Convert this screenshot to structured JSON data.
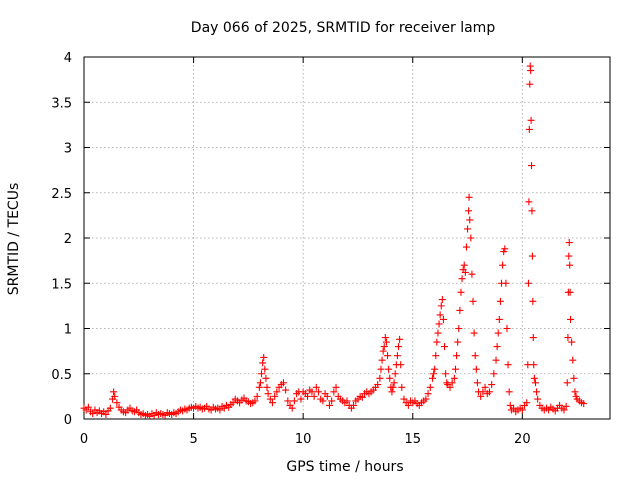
{
  "chart_data": {
    "type": "scatter",
    "title": "Day 066 of 2025, SRMTID for receiver lamp",
    "xlabel": "GPS time / hours",
    "ylabel": "SRMTID / TECUs",
    "xlim": [
      0,
      24
    ],
    "ylim": [
      0,
      4
    ],
    "xticks": [
      0,
      5,
      10,
      15,
      20
    ],
    "xtick_labels": [
      "0",
      "5",
      "10",
      "15",
      "20"
    ],
    "yticks": [
      0,
      0.5,
      1,
      1.5,
      2,
      2.5,
      3,
      3.5,
      4
    ],
    "ytick_labels": [
      "0",
      "0.5",
      "1",
      "1.5",
      "2",
      "2.5",
      "3",
      "3.5",
      "4"
    ],
    "grid": true,
    "marker": "+",
    "series": [
      {
        "name": "SRMTID",
        "color": "#ff0000",
        "points": [
          [
            0.0,
            0.12
          ],
          [
            0.1,
            0.1
          ],
          [
            0.2,
            0.13
          ],
          [
            0.3,
            0.08
          ],
          [
            0.4,
            0.06
          ],
          [
            0.5,
            0.1
          ],
          [
            0.6,
            0.07
          ],
          [
            0.7,
            0.09
          ],
          [
            0.8,
            0.06
          ],
          [
            0.9,
            0.08
          ],
          [
            1.0,
            0.05
          ],
          [
            1.1,
            0.09
          ],
          [
            1.2,
            0.12
          ],
          [
            1.3,
            0.22
          ],
          [
            1.35,
            0.3
          ],
          [
            1.4,
            0.25
          ],
          [
            1.5,
            0.18
          ],
          [
            1.6,
            0.13
          ],
          [
            1.7,
            0.1
          ],
          [
            1.8,
            0.08
          ],
          [
            1.9,
            0.07
          ],
          [
            2.0,
            0.1
          ],
          [
            2.1,
            0.12
          ],
          [
            2.2,
            0.09
          ],
          [
            2.3,
            0.08
          ],
          [
            2.4,
            0.1
          ],
          [
            2.5,
            0.07
          ],
          [
            2.6,
            0.05
          ],
          [
            2.7,
            0.06
          ],
          [
            2.8,
            0.04
          ],
          [
            2.9,
            0.05
          ],
          [
            3.0,
            0.03
          ],
          [
            3.1,
            0.06
          ],
          [
            3.2,
            0.04
          ],
          [
            3.3,
            0.07
          ],
          [
            3.4,
            0.05
          ],
          [
            3.5,
            0.06
          ],
          [
            3.6,
            0.05
          ],
          [
            3.7,
            0.04
          ],
          [
            3.8,
            0.07
          ],
          [
            3.9,
            0.06
          ],
          [
            4.0,
            0.05
          ],
          [
            4.1,
            0.07
          ],
          [
            4.2,
            0.06
          ],
          [
            4.3,
            0.08
          ],
          [
            4.4,
            0.1
          ],
          [
            4.5,
            0.09
          ],
          [
            4.6,
            0.11
          ],
          [
            4.7,
            0.1
          ],
          [
            4.8,
            0.12
          ],
          [
            4.9,
            0.13
          ],
          [
            5.0,
            0.12
          ],
          [
            5.1,
            0.14
          ],
          [
            5.2,
            0.12
          ],
          [
            5.3,
            0.13
          ],
          [
            5.4,
            0.11
          ],
          [
            5.5,
            0.12
          ],
          [
            5.6,
            0.14
          ],
          [
            5.7,
            0.11
          ],
          [
            5.8,
            0.1
          ],
          [
            5.9,
            0.13
          ],
          [
            6.0,
            0.11
          ],
          [
            6.1,
            0.12
          ],
          [
            6.2,
            0.1
          ],
          [
            6.3,
            0.14
          ],
          [
            6.4,
            0.12
          ],
          [
            6.5,
            0.15
          ],
          [
            6.6,
            0.13
          ],
          [
            6.7,
            0.16
          ],
          [
            6.8,
            0.18
          ],
          [
            6.9,
            0.22
          ],
          [
            7.0,
            0.2
          ],
          [
            7.1,
            0.18
          ],
          [
            7.2,
            0.21
          ],
          [
            7.3,
            0.23
          ],
          [
            7.4,
            0.2
          ],
          [
            7.5,
            0.19
          ],
          [
            7.6,
            0.17
          ],
          [
            7.7,
            0.18
          ],
          [
            7.8,
            0.2
          ],
          [
            7.9,
            0.25
          ],
          [
            8.0,
            0.35
          ],
          [
            8.05,
            0.4
          ],
          [
            8.1,
            0.5
          ],
          [
            8.15,
            0.62
          ],
          [
            8.2,
            0.68
          ],
          [
            8.25,
            0.55
          ],
          [
            8.3,
            0.45
          ],
          [
            8.35,
            0.35
          ],
          [
            8.4,
            0.28
          ],
          [
            8.5,
            0.22
          ],
          [
            8.6,
            0.18
          ],
          [
            8.7,
            0.25
          ],
          [
            8.8,
            0.3
          ],
          [
            8.9,
            0.35
          ],
          [
            9.0,
            0.38
          ],
          [
            9.1,
            0.4
          ],
          [
            9.2,
            0.32
          ],
          [
            9.3,
            0.2
          ],
          [
            9.4,
            0.15
          ],
          [
            9.5,
            0.12
          ],
          [
            9.6,
            0.2
          ],
          [
            9.7,
            0.28
          ],
          [
            9.8,
            0.3
          ],
          [
            9.9,
            0.22
          ],
          [
            10.0,
            0.3
          ],
          [
            10.1,
            0.28
          ],
          [
            10.2,
            0.25
          ],
          [
            10.3,
            0.32
          ],
          [
            10.4,
            0.3
          ],
          [
            10.5,
            0.25
          ],
          [
            10.6,
            0.35
          ],
          [
            10.7,
            0.3
          ],
          [
            10.8,
            0.22
          ],
          [
            10.9,
            0.2
          ],
          [
            11.0,
            0.28
          ],
          [
            11.1,
            0.25
          ],
          [
            11.2,
            0.15
          ],
          [
            11.3,
            0.2
          ],
          [
            11.4,
            0.3
          ],
          [
            11.5,
            0.35
          ],
          [
            11.6,
            0.25
          ],
          [
            11.7,
            0.22
          ],
          [
            11.8,
            0.2
          ],
          [
            11.9,
            0.18
          ],
          [
            12.0,
            0.2
          ],
          [
            12.1,
            0.15
          ],
          [
            12.2,
            0.12
          ],
          [
            12.3,
            0.15
          ],
          [
            12.4,
            0.2
          ],
          [
            12.5,
            0.22
          ],
          [
            12.6,
            0.25
          ],
          [
            12.7,
            0.24
          ],
          [
            12.8,
            0.28
          ],
          [
            12.9,
            0.3
          ],
          [
            13.0,
            0.28
          ],
          [
            13.1,
            0.3
          ],
          [
            13.2,
            0.32
          ],
          [
            13.3,
            0.35
          ],
          [
            13.4,
            0.38
          ],
          [
            13.5,
            0.45
          ],
          [
            13.55,
            0.55
          ],
          [
            13.6,
            0.65
          ],
          [
            13.65,
            0.75
          ],
          [
            13.7,
            0.8
          ],
          [
            13.75,
            0.9
          ],
          [
            13.8,
            0.85
          ],
          [
            13.85,
            0.7
          ],
          [
            13.9,
            0.55
          ],
          [
            13.95,
            0.45
          ],
          [
            14.0,
            0.35
          ],
          [
            14.05,
            0.3
          ],
          [
            14.1,
            0.35
          ],
          [
            14.15,
            0.4
          ],
          [
            14.2,
            0.5
          ],
          [
            14.25,
            0.6
          ],
          [
            14.3,
            0.7
          ],
          [
            14.35,
            0.8
          ],
          [
            14.4,
            0.88
          ],
          [
            14.45,
            0.6
          ],
          [
            14.5,
            0.35
          ],
          [
            14.6,
            0.22
          ],
          [
            14.7,
            0.18
          ],
          [
            14.8,
            0.15
          ],
          [
            14.9,
            0.2
          ],
          [
            15.0,
            0.18
          ],
          [
            15.1,
            0.2
          ],
          [
            15.2,
            0.17
          ],
          [
            15.3,
            0.15
          ],
          [
            15.4,
            0.18
          ],
          [
            15.5,
            0.2
          ],
          [
            15.6,
            0.22
          ],
          [
            15.7,
            0.28
          ],
          [
            15.8,
            0.35
          ],
          [
            15.9,
            0.45
          ],
          [
            15.95,
            0.5
          ],
          [
            16.0,
            0.55
          ],
          [
            16.05,
            0.7
          ],
          [
            16.1,
            0.85
          ],
          [
            16.15,
            0.95
          ],
          [
            16.2,
            1.05
          ],
          [
            16.25,
            1.15
          ],
          [
            16.3,
            1.25
          ],
          [
            16.35,
            1.32
          ],
          [
            16.4,
            1.1
          ],
          [
            16.45,
            0.8
          ],
          [
            16.5,
            0.5
          ],
          [
            16.55,
            0.4
          ],
          [
            16.6,
            0.38
          ],
          [
            16.7,
            0.35
          ],
          [
            16.8,
            0.4
          ],
          [
            16.9,
            0.45
          ],
          [
            16.95,
            0.55
          ],
          [
            17.0,
            0.7
          ],
          [
            17.05,
            0.85
          ],
          [
            17.1,
            1.0
          ],
          [
            17.15,
            1.2
          ],
          [
            17.2,
            1.4
          ],
          [
            17.25,
            1.55
          ],
          [
            17.3,
            1.65
          ],
          [
            17.35,
            1.7
          ],
          [
            17.4,
            1.62
          ],
          [
            17.45,
            1.9
          ],
          [
            17.5,
            2.1
          ],
          [
            17.55,
            2.3
          ],
          [
            17.57,
            2.45
          ],
          [
            17.6,
            2.2
          ],
          [
            17.65,
            2.0
          ],
          [
            17.7,
            1.6
          ],
          [
            17.75,
            1.3
          ],
          [
            17.8,
            0.95
          ],
          [
            17.85,
            0.7
          ],
          [
            17.9,
            0.55
          ],
          [
            17.95,
            0.4
          ],
          [
            18.0,
            0.3
          ],
          [
            18.1,
            0.25
          ],
          [
            18.2,
            0.3
          ],
          [
            18.3,
            0.35
          ],
          [
            18.4,
            0.28
          ],
          [
            18.5,
            0.3
          ],
          [
            18.6,
            0.38
          ],
          [
            18.7,
            0.5
          ],
          [
            18.8,
            0.65
          ],
          [
            18.85,
            0.8
          ],
          [
            18.9,
            0.95
          ],
          [
            18.95,
            1.1
          ],
          [
            19.0,
            1.3
          ],
          [
            19.05,
            1.5
          ],
          [
            19.1,
            1.7
          ],
          [
            19.15,
            1.85
          ],
          [
            19.2,
            1.88
          ],
          [
            19.25,
            1.5
          ],
          [
            19.3,
            1.0
          ],
          [
            19.35,
            0.6
          ],
          [
            19.4,
            0.3
          ],
          [
            19.45,
            0.15
          ],
          [
            19.5,
            0.1
          ],
          [
            19.6,
            0.12
          ],
          [
            19.7,
            0.08
          ],
          [
            19.8,
            0.1
          ],
          [
            19.9,
            0.12
          ],
          [
            20.0,
            0.1
          ],
          [
            20.1,
            0.15
          ],
          [
            20.2,
            0.18
          ],
          [
            20.25,
            0.6
          ],
          [
            20.28,
            1.5
          ],
          [
            20.3,
            2.4
          ],
          [
            20.32,
            3.2
          ],
          [
            20.34,
            3.7
          ],
          [
            20.36,
            3.9
          ],
          [
            20.38,
            3.85
          ],
          [
            20.4,
            3.3
          ],
          [
            20.42,
            2.8
          ],
          [
            20.44,
            2.3
          ],
          [
            20.46,
            1.8
          ],
          [
            20.48,
            1.3
          ],
          [
            20.5,
            0.9
          ],
          [
            20.52,
            0.6
          ],
          [
            20.55,
            0.45
          ],
          [
            20.6,
            0.4
          ],
          [
            20.65,
            0.3
          ],
          [
            20.7,
            0.22
          ],
          [
            20.8,
            0.15
          ],
          [
            20.9,
            0.12
          ],
          [
            21.0,
            0.1
          ],
          [
            21.1,
            0.12
          ],
          [
            21.2,
            0.1
          ],
          [
            21.3,
            0.13
          ],
          [
            21.4,
            0.11
          ],
          [
            21.5,
            0.09
          ],
          [
            21.6,
            0.12
          ],
          [
            21.7,
            0.15
          ],
          [
            21.8,
            0.12
          ],
          [
            21.9,
            0.1
          ],
          [
            22.0,
            0.14
          ],
          [
            22.05,
            0.4
          ],
          [
            22.08,
            0.9
          ],
          [
            22.1,
            1.4
          ],
          [
            22.12,
            1.8
          ],
          [
            22.14,
            1.95
          ],
          [
            22.16,
            1.7
          ],
          [
            22.18,
            1.4
          ],
          [
            22.2,
            1.1
          ],
          [
            22.25,
            0.85
          ],
          [
            22.3,
            0.65
          ],
          [
            22.35,
            0.45
          ],
          [
            22.4,
            0.3
          ],
          [
            22.45,
            0.25
          ],
          [
            22.5,
            0.22
          ],
          [
            22.6,
            0.2
          ],
          [
            22.7,
            0.18
          ],
          [
            22.8,
            0.17
          ]
        ]
      }
    ]
  }
}
